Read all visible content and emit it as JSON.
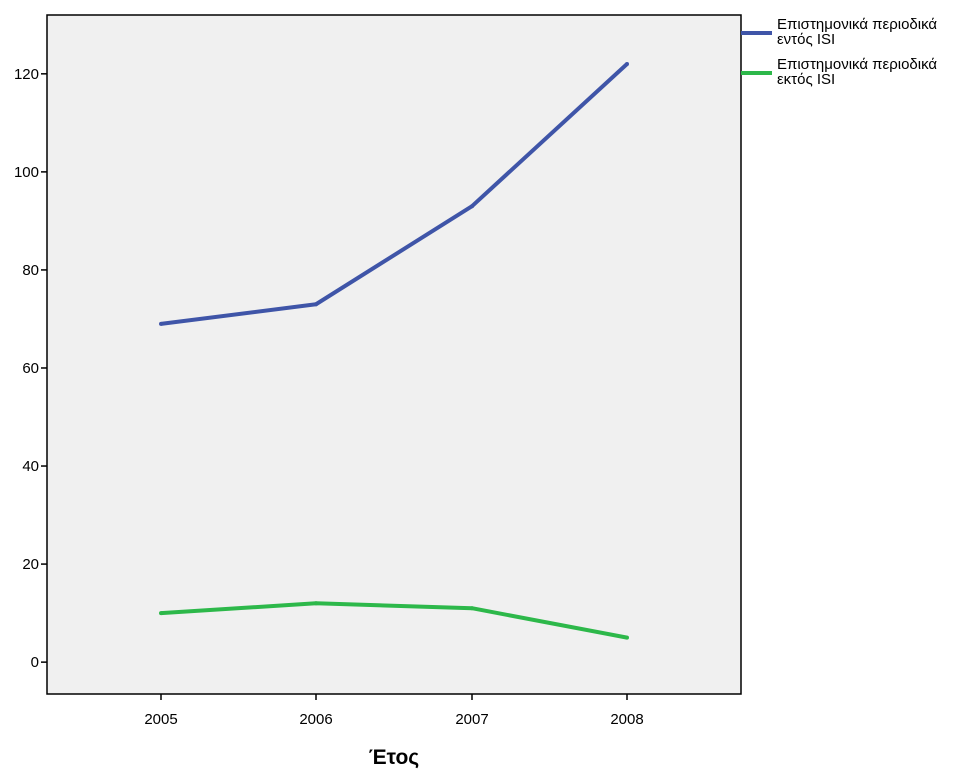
{
  "chart_data": {
    "type": "line",
    "title": "",
    "xlabel": "Έτος",
    "ylabel": "",
    "categories": [
      "2005",
      "2006",
      "2007",
      "2008"
    ],
    "ylim": [
      -6.5,
      132
    ],
    "yticks": [
      0,
      20,
      40,
      60,
      80,
      100,
      120
    ],
    "grid": false,
    "legend_position": "right",
    "plot_background": "#f0f0f0",
    "series": [
      {
        "name": "Επιστημονικά περιοδικά εντός ISI",
        "name_lines": [
          "Επιστημονικά περιοδικά",
          "εντός ISI"
        ],
        "color": "#3f55a8",
        "values": [
          69,
          73,
          93,
          122
        ]
      },
      {
        "name": "Επιστημονικά περιοδικά εκτός ISI",
        "name_lines": [
          "Επιστημονικά περιοδικά",
          "εκτός ISI"
        ],
        "color": "#2db84a",
        "values": [
          10,
          12,
          11,
          5
        ]
      }
    ]
  }
}
